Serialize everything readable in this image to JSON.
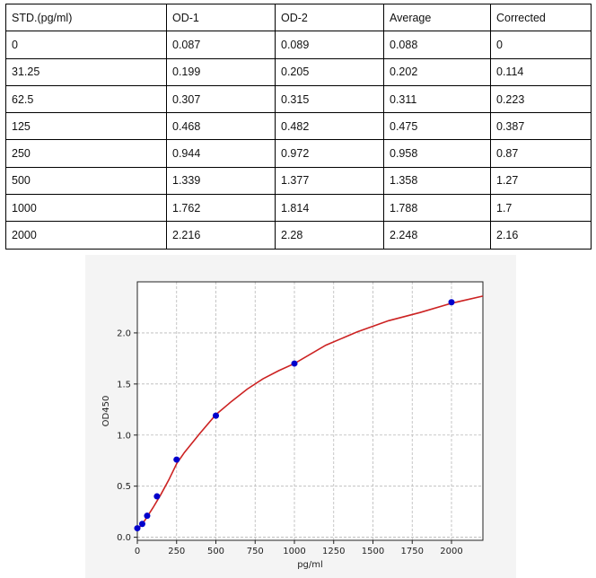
{
  "table": {
    "headers": [
      "STD.(pg/ml)",
      "OD-1",
      "OD-2",
      "Average",
      "Corrected"
    ],
    "rows": [
      [
        "0",
        "0.087",
        "0.089",
        "0.088",
        "0"
      ],
      [
        "31.25",
        "0.199",
        "0.205",
        "0.202",
        "0.114"
      ],
      [
        "62.5",
        "0.307",
        "0.315",
        "0.311",
        "0.223"
      ],
      [
        "125",
        "0.468",
        "0.482",
        "0.475",
        "0.387"
      ],
      [
        "250",
        "0.944",
        "0.972",
        "0.958",
        "0.87"
      ],
      [
        "500",
        "1.339",
        "1.377",
        "1.358",
        "1.27"
      ],
      [
        "1000",
        "1.762",
        "1.814",
        "1.788",
        "1.7"
      ],
      [
        "2000",
        "2.216",
        "2.28",
        "2.248",
        "2.16"
      ]
    ]
  },
  "chart_data": {
    "type": "scatter",
    "title": "",
    "xlabel": "pg/ml",
    "ylabel": "OD450",
    "xlim": [
      0,
      2200
    ],
    "ylim": [
      -0.03,
      2.5
    ],
    "x_ticks": [
      0,
      250,
      500,
      750,
      1000,
      1250,
      1500,
      1750,
      2000
    ],
    "y_ticks": [
      0.0,
      0.5,
      1.0,
      1.5,
      2.0
    ],
    "y_tick_labels": [
      "0.0",
      "0.5",
      "1.0",
      "1.5",
      "2.0"
    ],
    "grid": true,
    "points": {
      "x": [
        0,
        31.25,
        62.5,
        125,
        250,
        500,
        1000,
        2000
      ],
      "y": [
        0.088,
        0.13,
        0.21,
        0.4,
        0.76,
        1.19,
        1.7,
        2.3
      ],
      "color": "#0000cc"
    },
    "fit_curve": {
      "color": "#cc2222",
      "x": [
        0,
        25,
        50,
        100,
        150,
        200,
        250,
        300,
        400,
        500,
        600,
        700,
        800,
        900,
        1000,
        1200,
        1400,
        1600,
        1800,
        2000,
        2200
      ],
      "y": [
        0.07,
        0.12,
        0.17,
        0.29,
        0.42,
        0.56,
        0.72,
        0.83,
        1.02,
        1.2,
        1.33,
        1.45,
        1.55,
        1.63,
        1.7,
        1.88,
        2.01,
        2.12,
        2.2,
        2.29,
        2.36
      ]
    }
  }
}
